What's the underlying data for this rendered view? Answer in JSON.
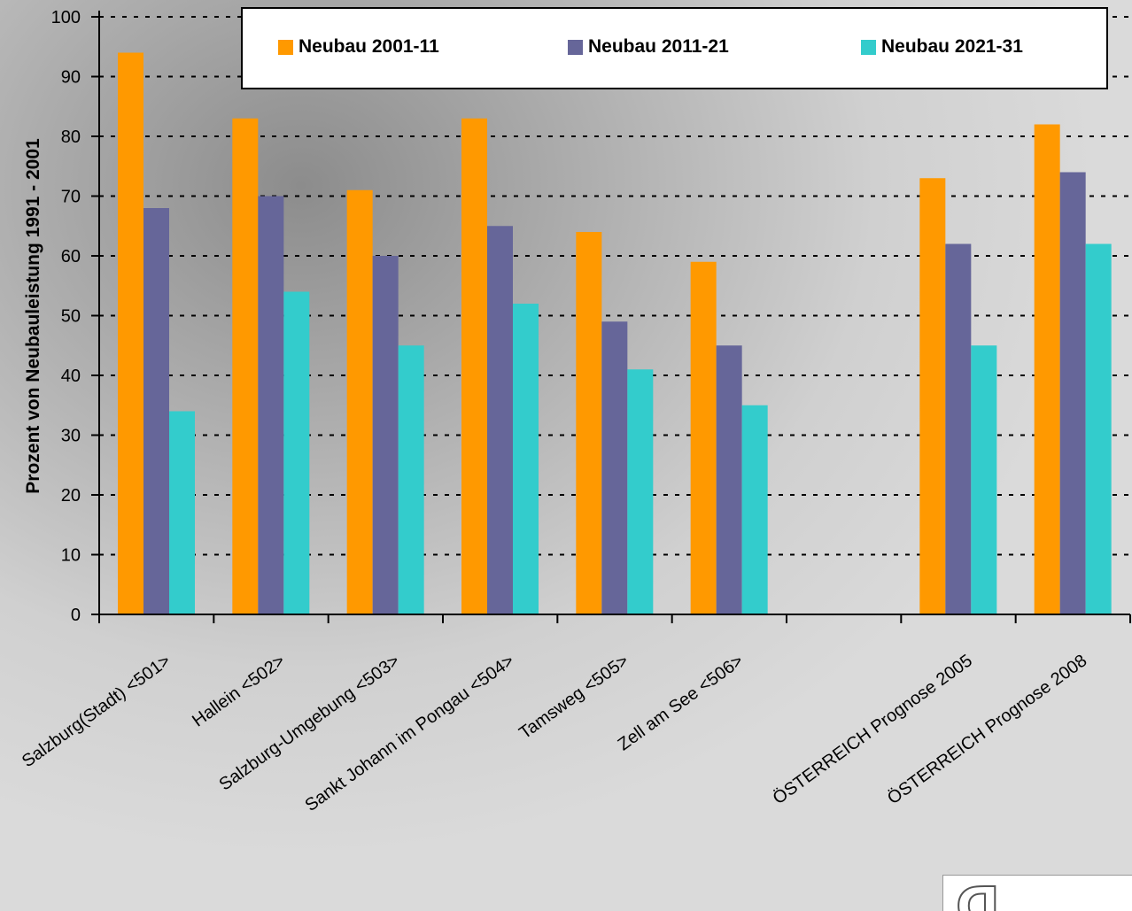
{
  "chart_data": {
    "type": "bar",
    "ylabel": "Prozent von Neubauleistung 1991 - 2001",
    "ylim": [
      0,
      100
    ],
    "yticks": [
      0,
      10,
      20,
      30,
      40,
      50,
      60,
      70,
      80,
      90,
      100
    ],
    "grid": "horizontal dotted",
    "legend_position": "top",
    "categories": [
      "Salzburg(Stadt)  <501>",
      "Hallein  <502>",
      "Salzburg-Umgebung  <503>",
      "Sankt Johann im Pongau  <504>",
      "Tamsweg  <505>",
      "Zell am See  <506>",
      "",
      "ÖSTERREICH Prognose 2005",
      "ÖSTERREICH Prognose 2008"
    ],
    "series": [
      {
        "name": "Neubau 2001-11",
        "color": "#ff9900",
        "values": [
          94,
          83,
          71,
          83,
          64,
          59,
          null,
          73,
          82
        ]
      },
      {
        "name": "Neubau 2011-21",
        "color": "#666699",
        "values": [
          68,
          70,
          60,
          65,
          49,
          45,
          null,
          62,
          74
        ]
      },
      {
        "name": "Neubau 2021-31",
        "color": "#33cccc",
        "values": [
          34,
          54,
          45,
          52,
          41,
          35,
          null,
          45,
          62
        ]
      }
    ]
  }
}
